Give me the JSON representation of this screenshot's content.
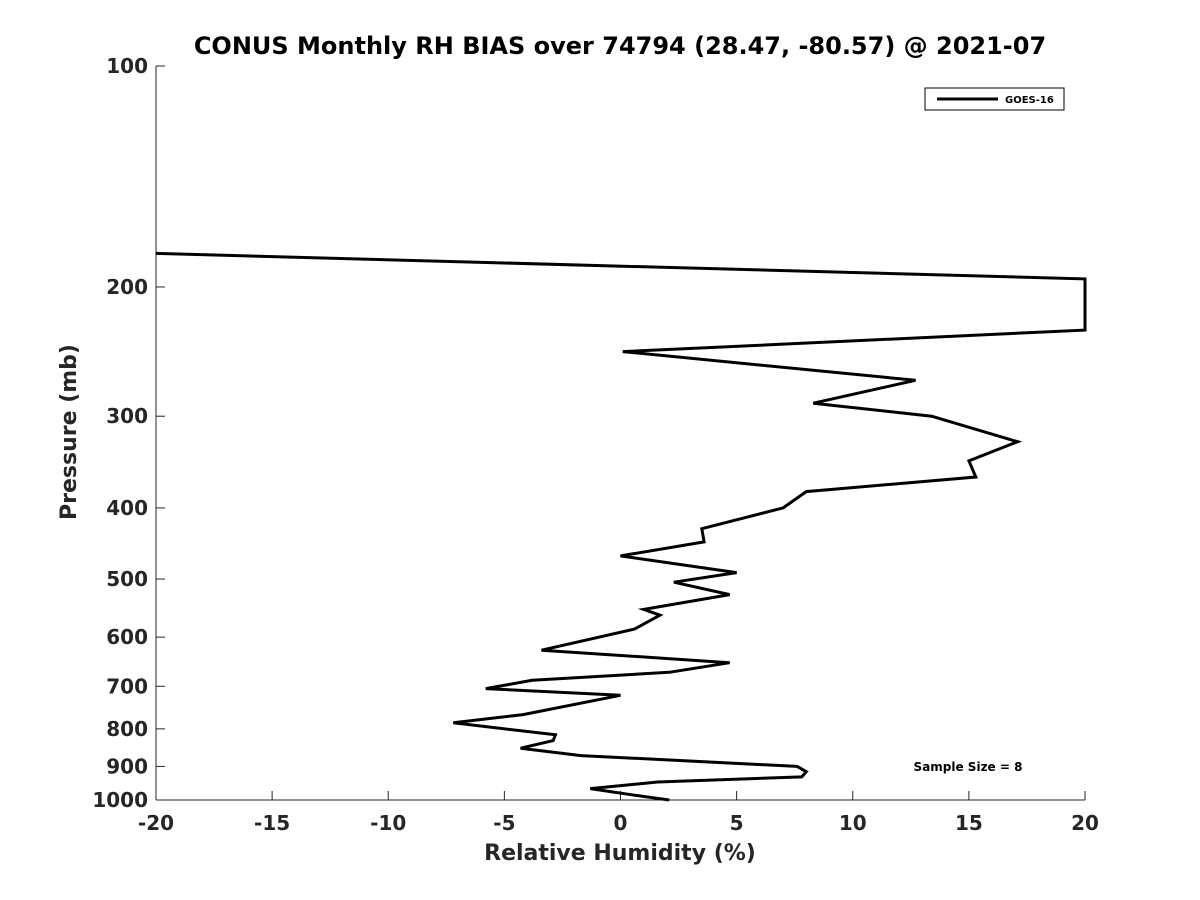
{
  "chart_data": {
    "type": "line",
    "title": "CONUS Monthly RH BIAS over 74794 (28.47, -80.57) @ 2021-07",
    "xlabel": "Relative Humidity (%)",
    "ylabel": "Pressure (mb)",
    "xlim": [
      -20,
      20
    ],
    "ylim": [
      100,
      1000
    ],
    "y_scale": "log",
    "y_reversed": true,
    "x_ticks": [
      -20,
      -15,
      -10,
      -5,
      0,
      5,
      10,
      15,
      20
    ],
    "y_ticks": [
      100,
      200,
      300,
      400,
      500,
      600,
      700,
      800,
      900,
      1000
    ],
    "grid": false,
    "legend_position": "top-right",
    "annotation": "Sample Size = 8",
    "series": [
      {
        "name": "GOES-16",
        "color": "#000000",
        "points": [
          [
            -20,
            180
          ],
          [
            20,
            195
          ],
          [
            20,
            229
          ],
          [
            0.1,
            245
          ],
          [
            12.7,
            268
          ],
          [
            8.3,
            288
          ],
          [
            13.4,
            300
          ],
          [
            17.1,
            325
          ],
          [
            15,
            345
          ],
          [
            15.3,
            363
          ],
          [
            8,
            380
          ],
          [
            7,
            400
          ],
          [
            3.5,
            427
          ],
          [
            3.6,
            445
          ],
          [
            0,
            465
          ],
          [
            5,
            490
          ],
          [
            2.3,
            505
          ],
          [
            4.7,
            525
          ],
          [
            1,
            550
          ],
          [
            1.7,
            560
          ],
          [
            0.6,
            585
          ],
          [
            -3.4,
            625
          ],
          [
            4.7,
            650
          ],
          [
            2.1,
            670
          ],
          [
            -3.8,
            687
          ],
          [
            -5.8,
            705
          ],
          [
            0,
            720
          ],
          [
            -4.2,
            765
          ],
          [
            -7.2,
            785
          ],
          [
            -2.8,
            815
          ],
          [
            -2.9,
            830
          ],
          [
            -4.3,
            850
          ],
          [
            -1.7,
            870
          ],
          [
            7.6,
            900
          ],
          [
            8,
            915
          ],
          [
            7.8,
            930
          ],
          [
            1.6,
            945
          ],
          [
            -1.3,
            965
          ],
          [
            0.6,
            985
          ],
          [
            2.1,
            1000
          ]
        ]
      }
    ]
  }
}
